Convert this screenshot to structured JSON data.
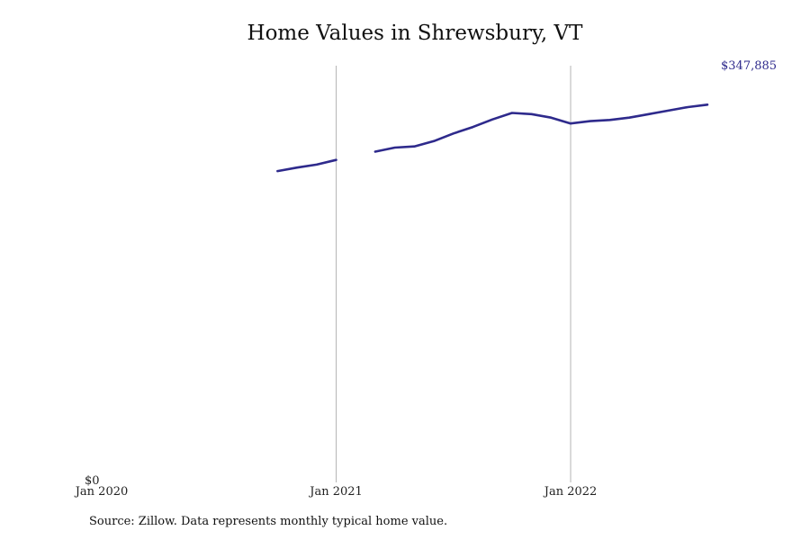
{
  "chart_data": {
    "type": "line",
    "title": "Home Values in Shrewsbury, VT",
    "xlabel": "",
    "ylabel": "",
    "x_ticks": [
      "Jan 2020",
      "Jan 2021",
      "Jan 2022"
    ],
    "y_ticks": [
      "$0"
    ],
    "ylim": [
      0,
      347885
    ],
    "grid": "vertical lines at Jan 2021 and Jan 2022",
    "line_color": "#2e2a8c",
    "end_label": "$347,885",
    "segments": [
      {
        "x": [
          "2020-10",
          "2020-11",
          "2020-12",
          "2021-01"
        ],
        "y": [
          262000,
          265000,
          267500,
          271500
        ]
      },
      {
        "x": [
          "2021-03",
          "2021-04",
          "2021-05",
          "2021-06",
          "2021-07",
          "2021-08",
          "2021-09",
          "2021-10",
          "2021-11",
          "2021-12",
          "2022-01",
          "2022-02",
          "2022-03",
          "2022-04",
          "2022-05",
          "2022-06",
          "2022-07",
          "2022-08"
        ],
        "y": [
          278500,
          282000,
          283000,
          287500,
          294000,
          299500,
          306000,
          311500,
          310500,
          307500,
          302500,
          304500,
          305500,
          307500,
          310500,
          313500,
          316500,
          318500
        ]
      }
    ]
  },
  "footer": {
    "source": "Source: Zillow. Data represents monthly typical home value."
  }
}
